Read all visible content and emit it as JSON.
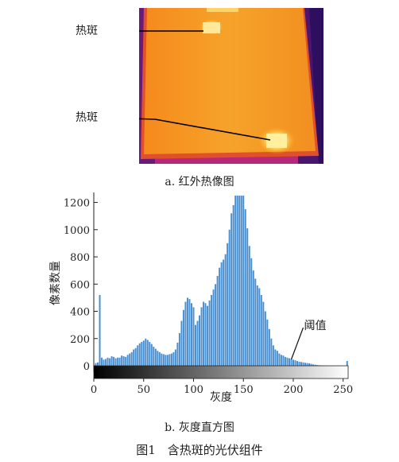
{
  "thermal": {
    "hotspot_label_1": "热斑",
    "hotspot_label_2": "热斑",
    "caption": "a. 红外热像图"
  },
  "chart_data": {
    "type": "bar",
    "title": "",
    "xlabel": "灰度",
    "ylabel": "像素数量",
    "xlim": [
      0,
      255
    ],
    "ylim": [
      0,
      1250
    ],
    "xticks": [
      0,
      50,
      100,
      150,
      200,
      250
    ],
    "yticks": [
      0,
      200,
      400,
      600,
      800,
      1000,
      1200
    ],
    "colorbar": "grayscale gradient 0-255 below x axis",
    "annotation": "阈值",
    "threshold": 198,
    "bar_color": "#4a8fd0",
    "x": [
      2,
      4,
      6,
      8,
      10,
      12,
      14,
      16,
      18,
      20,
      22,
      24,
      26,
      28,
      30,
      32,
      34,
      36,
      38,
      40,
      42,
      44,
      46,
      48,
      50,
      52,
      54,
      56,
      58,
      60,
      62,
      64,
      66,
      68,
      70,
      72,
      74,
      76,
      78,
      80,
      82,
      84,
      86,
      88,
      90,
      92,
      94,
      96,
      98,
      100,
      102,
      104,
      106,
      108,
      110,
      112,
      114,
      116,
      118,
      120,
      122,
      124,
      126,
      128,
      130,
      132,
      134,
      136,
      138,
      140,
      142,
      144,
      146,
      148,
      150,
      152,
      154,
      156,
      158,
      160,
      162,
      164,
      166,
      168,
      170,
      172,
      174,
      176,
      178,
      180,
      182,
      184,
      186,
      188,
      190,
      192,
      194,
      196,
      198,
      200,
      202,
      204,
      206,
      208,
      210,
      212,
      214,
      216,
      218,
      220,
      222,
      224,
      226,
      228,
      230,
      232,
      234,
      236,
      238,
      240,
      242,
      244,
      246,
      248,
      250,
      252,
      254
    ],
    "values": [
      20,
      25,
      45,
      60,
      45,
      50,
      60,
      55,
      70,
      65,
      55,
      60,
      60,
      75,
      70,
      65,
      80,
      90,
      100,
      120,
      130,
      150,
      165,
      175,
      185,
      200,
      190,
      175,
      160,
      140,
      125,
      110,
      100,
      90,
      85,
      80,
      80,
      85,
      90,
      100,
      120,
      170,
      240,
      330,
      410,
      470,
      500,
      490,
      460,
      430,
      300,
      330,
      370,
      430,
      470,
      460,
      440,
      480,
      520,
      560,
      600,
      660,
      720,
      760,
      780,
      820,
      900,
      1000,
      1120,
      1180,
      1250,
      1250,
      1250,
      1250,
      1250,
      1150,
      1010,
      880,
      790,
      700,
      640,
      590,
      570,
      520,
      470,
      400,
      340,
      270,
      200,
      150,
      120,
      110,
      90,
      80,
      75,
      65,
      60,
      55,
      50,
      45,
      40,
      35,
      30,
      28,
      25,
      22,
      20,
      18,
      14,
      10,
      8,
      5,
      4,
      3,
      2,
      2,
      1,
      1,
      0,
      0,
      0,
      0,
      0,
      0,
      0,
      0,
      0
    ],
    "spikes": [
      {
        "x": 6,
        "value": 520
      },
      {
        "x": 254,
        "value": 35
      }
    ],
    "caption": "b. 灰度直方图"
  },
  "figure_caption": "图1　含热斑的光伏组件"
}
